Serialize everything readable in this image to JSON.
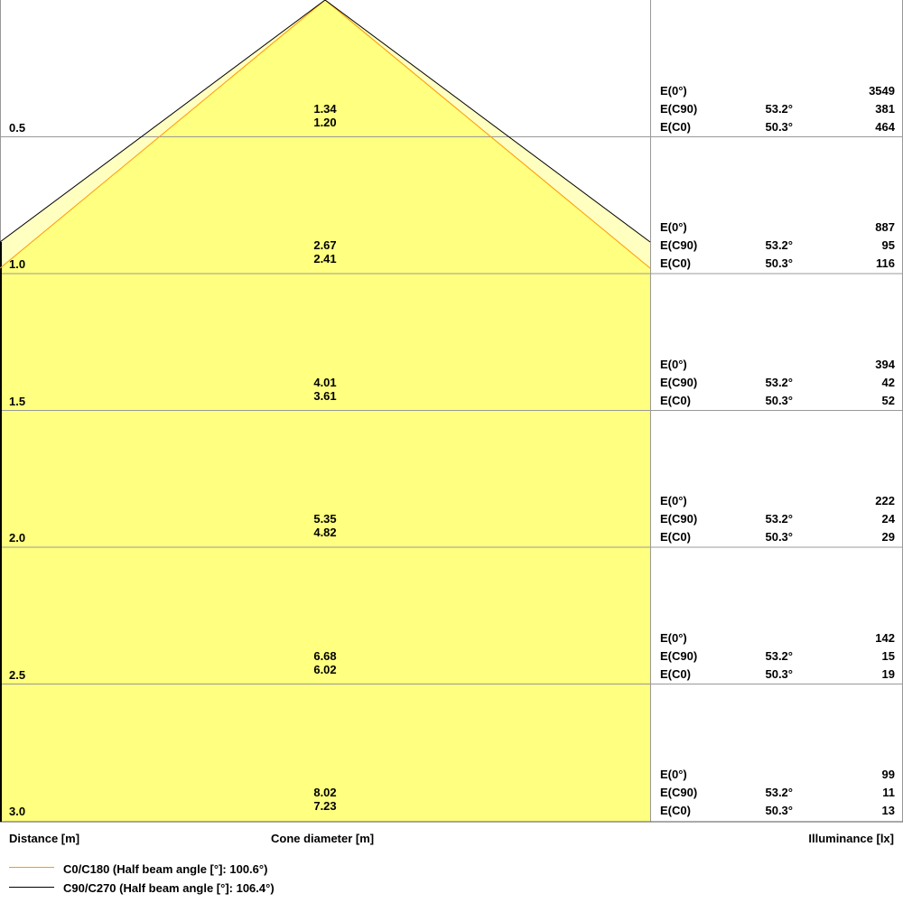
{
  "colors": {
    "c0_line": "#ff9900",
    "c90_line": "#000000",
    "cone_fill": "#ffff80",
    "outer_fill": "#ffffc0",
    "grid": "#999999"
  },
  "rows": [
    {
      "distance": "0.5",
      "cone_c90": "1.34",
      "cone_c0": "1.20",
      "e0": "3549",
      "ec90_angle": "53.2°",
      "ec90": "381",
      "ec0_angle": "50.3°",
      "ec0": "464"
    },
    {
      "distance": "1.0",
      "cone_c90": "2.67",
      "cone_c0": "2.41",
      "e0": "887",
      "ec90_angle": "53.2°",
      "ec90": "95",
      "ec0_angle": "50.3°",
      "ec0": "116"
    },
    {
      "distance": "1.5",
      "cone_c90": "4.01",
      "cone_c0": "3.61",
      "e0": "394",
      "ec90_angle": "53.2°",
      "ec90": "42",
      "ec0_angle": "50.3°",
      "ec0": "52"
    },
    {
      "distance": "2.0",
      "cone_c90": "5.35",
      "cone_c0": "4.82",
      "e0": "222",
      "ec90_angle": "53.2°",
      "ec90": "24",
      "ec0_angle": "50.3°",
      "ec0": "29"
    },
    {
      "distance": "2.5",
      "cone_c90": "6.68",
      "cone_c0": "6.02",
      "e0": "142",
      "ec90_angle": "53.2°",
      "ec90": "15",
      "ec0_angle": "50.3°",
      "ec0": "19"
    },
    {
      "distance": "3.0",
      "cone_c90": "8.02",
      "cone_c0": "7.23",
      "e0": "99",
      "ec90_angle": "53.2°",
      "ec90": "11",
      "ec0_angle": "50.3°",
      "ec0": "13"
    }
  ],
  "labels": {
    "e0": "E(0°)",
    "ec90": "E(C90)",
    "ec0": "E(C0)"
  },
  "footer": {
    "distance": "Distance [m]",
    "cone": "Cone diameter [m]",
    "illuminance": "Illuminance [lx]"
  },
  "legend": [
    {
      "label": "C0/C180 (Half beam angle [°]: 100.6°)",
      "color": "#ff9900"
    },
    {
      "label": "C90/C270 (Half beam angle [°]: 106.4°)",
      "color": "#000000"
    }
  ]
}
